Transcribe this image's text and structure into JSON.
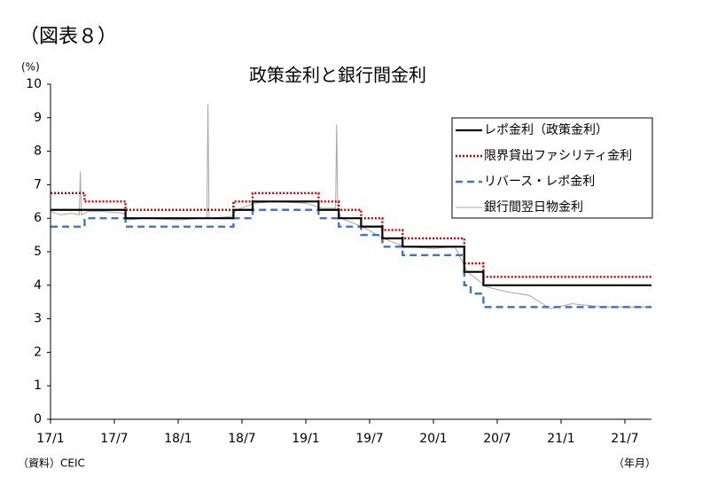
{
  "chart_data": {
    "type": "line",
    "figure_label": "（図表８）",
    "title": "政策金利と銀行間金利",
    "y_unit_label": "(%)",
    "x_unit_label": "（年月）",
    "source": "（資料）CEIC",
    "xlim": [
      0,
      56.5
    ],
    "xticks": [
      {
        "value": 0,
        "label": "17/1"
      },
      {
        "value": 6,
        "label": "17/7"
      },
      {
        "value": 12,
        "label": "18/1"
      },
      {
        "value": 18,
        "label": "18/7"
      },
      {
        "value": 24,
        "label": "19/1"
      },
      {
        "value": 30,
        "label": "19/7"
      },
      {
        "value": 36,
        "label": "20/1"
      },
      {
        "value": 42,
        "label": "20/7"
      },
      {
        "value": 48,
        "label": "21/1"
      },
      {
        "value": 54,
        "label": "21/7"
      }
    ],
    "ylim": [
      0,
      10
    ],
    "yticks": [
      0,
      1,
      2,
      3,
      4,
      5,
      6,
      7,
      8,
      9,
      10
    ],
    "grid": false,
    "legend": "upper right",
    "series": [
      {
        "name": "レポ金利（政策金利）",
        "color": "#000000",
        "line_style": "solid",
        "linewidth": 2.2,
        "x": [
          0,
          7.05,
          7.05,
          17.2,
          17.2,
          19.0,
          19.0,
          25.2,
          25.2,
          27.1,
          27.1,
          29.2,
          29.2,
          31.2,
          31.2,
          33.1,
          33.1,
          38.9,
          38.9,
          40.7,
          40.7,
          56.5
        ],
        "values": [
          6.25,
          6.25,
          6.0,
          6.0,
          6.25,
          6.25,
          6.5,
          6.5,
          6.25,
          6.25,
          6.0,
          6.0,
          5.75,
          5.75,
          5.4,
          5.4,
          5.15,
          5.15,
          4.4,
          4.4,
          4.0,
          4.0
        ]
      },
      {
        "name": "限界貸出ファシリティ金利",
        "color": "#c00000",
        "line_style": "dotted",
        "linewidth": 2.4,
        "x": [
          0,
          3.2,
          3.2,
          7.05,
          7.05,
          17.2,
          17.2,
          19.0,
          19.0,
          25.2,
          25.2,
          27.1,
          27.1,
          29.2,
          29.2,
          31.2,
          31.2,
          33.1,
          33.1,
          38.9,
          38.9,
          40.7,
          40.7,
          56.5
        ],
        "values": [
          6.75,
          6.75,
          6.5,
          6.5,
          6.25,
          6.25,
          6.5,
          6.5,
          6.75,
          6.75,
          6.5,
          6.5,
          6.25,
          6.25,
          6.0,
          6.0,
          5.65,
          5.65,
          5.4,
          5.4,
          4.65,
          4.65,
          4.25,
          4.25
        ]
      },
      {
        "name": "リバース・レポ金利",
        "color": "#4472c4",
        "line_style": "dashed",
        "linewidth": 2.4,
        "x": [
          0,
          3.2,
          3.2,
          7.05,
          7.05,
          17.2,
          17.2,
          19.0,
          19.0,
          25.2,
          25.2,
          27.1,
          27.1,
          29.2,
          29.2,
          31.2,
          31.2,
          33.1,
          33.1,
          38.9,
          38.9,
          39.5,
          39.5,
          40.7,
          40.7,
          56.5
        ],
        "values": [
          5.75,
          5.75,
          6.0,
          6.0,
          5.75,
          5.75,
          6.0,
          6.0,
          6.25,
          6.25,
          6.0,
          6.0,
          5.75,
          5.75,
          5.5,
          5.5,
          5.15,
          5.15,
          4.9,
          4.9,
          4.0,
          4.0,
          3.75,
          3.75,
          3.35,
          3.35
        ]
      },
      {
        "name": "銀行間翌日物金利",
        "color": "#a6a6a6",
        "line_style": "solid",
        "linewidth": 1,
        "x": [
          0,
          1,
          2,
          2.7,
          2.8,
          2.9,
          3.5,
          5,
          6.9,
          7.2,
          9,
          12,
          14,
          14.7,
          14.8,
          14.9,
          17,
          17.5,
          19.2,
          21,
          24,
          25.5,
          26.8,
          26.9,
          27.0,
          27.3,
          29.3,
          31.3,
          33.3,
          36,
          38,
          39.2,
          40,
          41,
          43,
          45,
          47,
          49,
          52,
          56.5
        ],
        "values": [
          6.2,
          6.1,
          6.15,
          6.1,
          7.4,
          6.1,
          6.2,
          6.2,
          6.15,
          5.95,
          6.0,
          5.95,
          6.0,
          6.0,
          9.4,
          6.0,
          6.05,
          6.25,
          6.45,
          6.5,
          6.45,
          6.3,
          6.3,
          8.8,
          6.3,
          6.0,
          5.75,
          5.4,
          5.15,
          5.1,
          5.15,
          4.4,
          4.2,
          3.95,
          3.8,
          3.7,
          3.3,
          3.45,
          3.35,
          3.35
        ]
      }
    ]
  }
}
